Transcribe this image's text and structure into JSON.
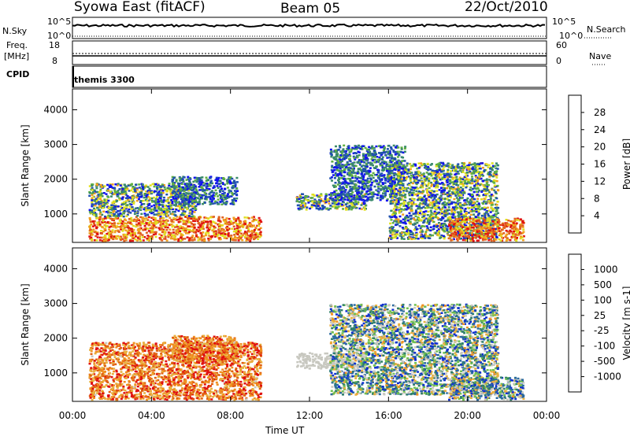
{
  "header": {
    "left": "Syowa East (fitACF)",
    "center": "Beam 05",
    "right": "22/Oct/2010"
  },
  "strips": {
    "nsky_label": "N.Sky",
    "nsky_ticks": [
      "10^5",
      "10^0"
    ],
    "nsearch_label": "N.Search",
    "nsearch_ticks": [
      "10^5",
      "10^0"
    ],
    "freq_label_1": "Freq.",
    "freq_label_2": "[MHz]",
    "freq_ticks": [
      "18",
      "8"
    ],
    "nave_label": "Nave",
    "nave_ticks": [
      "60",
      "0"
    ],
    "cpid_label": "CPID",
    "cpid_value": "themis 3300"
  },
  "chart_data": [
    {
      "type": "heatmap",
      "panel": "power",
      "xlabel": "Time UT",
      "ylabel": "Slant Range [km]",
      "x_ticks": [
        "00:00",
        "04:00",
        "08:00",
        "12:00",
        "16:00",
        "20:00",
        "00:00"
      ],
      "y_ticks": [
        1000,
        2000,
        3000,
        4000
      ],
      "xlim_hours": [
        0,
        24
      ],
      "ylim_km": [
        180,
        4600
      ],
      "colorbar": {
        "label": "Power [dB]",
        "ticks": [
          "4",
          "8",
          "12",
          "16",
          "20",
          "24",
          "28"
        ],
        "colors": [
          "#1010f0",
          "#2050b0",
          "#3a8a6a",
          "#60b040",
          "#e0e020",
          "#f0a020",
          "#e06020",
          "#e01010"
        ]
      },
      "regions": [
        {
          "t": [
            0.8,
            9.5
          ],
          "r": [
            250,
            950
          ],
          "level": "high"
        },
        {
          "t": [
            0.8,
            6.2
          ],
          "r": [
            950,
            1900
          ],
          "level": "mid"
        },
        {
          "t": [
            5.0,
            8.3
          ],
          "r": [
            1300,
            2100
          ],
          "level": "low"
        },
        {
          "t": [
            11.3,
            14.8
          ],
          "r": [
            1150,
            1600
          ],
          "level": "mid"
        },
        {
          "t": [
            13.0,
            16.8
          ],
          "r": [
            1400,
            3000
          ],
          "level": "low"
        },
        {
          "t": [
            16.0,
            21.5
          ],
          "r": [
            300,
            2500
          ],
          "level": "mid"
        },
        {
          "t": [
            19.0,
            22.8
          ],
          "r": [
            250,
            900
          ],
          "level": "high"
        }
      ]
    },
    {
      "type": "heatmap",
      "panel": "velocity",
      "xlabel": "Time UT",
      "ylabel": "Slant Range [km]",
      "x_ticks": [
        "00:00",
        "04:00",
        "08:00",
        "12:00",
        "16:00",
        "20:00",
        "00:00"
      ],
      "y_ticks": [
        1000,
        2000,
        3000,
        4000
      ],
      "xlim_hours": [
        0,
        24
      ],
      "ylim_km": [
        180,
        4600
      ],
      "colorbar": {
        "label": "Velocity [m s-1]",
        "ticks": [
          "1000",
          "500",
          "100",
          "25",
          "-25",
          "-100",
          "-500",
          "-1000"
        ],
        "colors": [
          "#1030d0",
          "#2a6aa0",
          "#30806a",
          "#70c050",
          "#c8c8c0",
          "#e8b040",
          "#f09020",
          "#e06010",
          "#e01010"
        ]
      },
      "regions": [
        {
          "t": [
            0.8,
            9.5
          ],
          "r": [
            250,
            1900
          ],
          "level": "negative"
        },
        {
          "t": [
            5.0,
            8.3
          ],
          "r": [
            1300,
            2100
          ],
          "level": "negative"
        },
        {
          "t": [
            11.3,
            14.8
          ],
          "r": [
            1150,
            1600
          ],
          "level": "zero"
        },
        {
          "t": [
            13.0,
            21.5
          ],
          "r": [
            400,
            3000
          ],
          "level": "positive"
        },
        {
          "t": [
            19.0,
            22.8
          ],
          "r": [
            250,
            900
          ],
          "level": "positive"
        }
      ]
    }
  ]
}
